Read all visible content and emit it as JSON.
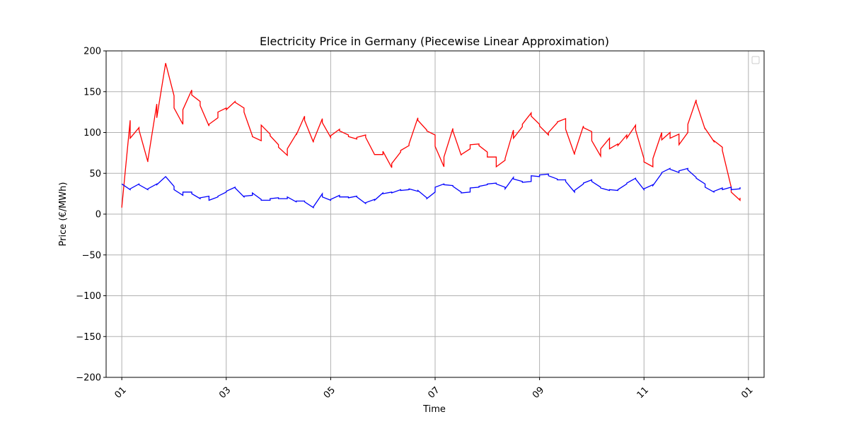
{
  "chart_data": {
    "type": "line",
    "title": "Electricity Price in Germany (Piecewise Linear Approximation)",
    "xlabel": "Time",
    "ylabel": "Price (€/MWh)",
    "xlim": [
      -0.3,
      12.3
    ],
    "ylim": [
      -200,
      200
    ],
    "x_ticks": [
      0,
      2,
      4,
      6,
      8,
      10,
      12
    ],
    "x_tick_labels": [
      "01",
      "03",
      "05",
      "07",
      "09",
      "11",
      "01"
    ],
    "y_ticks": [
      -200,
      -150,
      -100,
      -50,
      0,
      50,
      100,
      150,
      200
    ],
    "y_tick_labels": [
      "−200",
      "−150",
      "−100",
      "−50",
      "0",
      "50",
      "100",
      "150",
      "200"
    ],
    "grid": true,
    "legend": {
      "placement": "top-right",
      "entries": []
    },
    "series": [
      {
        "color": "#ff0000",
        "points": [
          [
            0.0,
            8
          ],
          [
            0.16,
            115
          ],
          [
            0.16,
            93
          ],
          [
            0.33,
            106
          ],
          [
            0.33,
            103
          ],
          [
            0.5,
            64
          ],
          [
            0.5,
            66
          ],
          [
            0.67,
            135
          ],
          [
            0.67,
            118
          ],
          [
            0.84,
            185
          ],
          [
            1.0,
            145
          ],
          [
            1.0,
            130
          ],
          [
            1.17,
            110
          ],
          [
            1.17,
            128
          ],
          [
            1.34,
            152
          ],
          [
            1.34,
            146
          ],
          [
            1.5,
            138
          ],
          [
            1.5,
            133
          ],
          [
            1.67,
            108
          ],
          [
            1.67,
            110
          ],
          [
            1.84,
            118
          ],
          [
            1.84,
            125
          ],
          [
            2.0,
            130
          ],
          [
            2.0,
            128
          ],
          [
            2.17,
            138
          ],
          [
            2.17,
            137
          ],
          [
            2.34,
            130
          ],
          [
            2.34,
            125
          ],
          [
            2.5,
            96
          ],
          [
            2.5,
            95
          ],
          [
            2.67,
            90
          ],
          [
            2.67,
            109
          ],
          [
            2.84,
            98
          ],
          [
            2.84,
            96
          ],
          [
            3.0,
            85
          ],
          [
            3.0,
            82
          ],
          [
            3.17,
            72
          ],
          [
            3.17,
            80
          ],
          [
            3.34,
            98
          ],
          [
            3.34,
            97
          ],
          [
            3.5,
            120
          ],
          [
            3.5,
            115
          ],
          [
            3.67,
            88
          ],
          [
            3.67,
            90
          ],
          [
            3.84,
            117
          ],
          [
            3.84,
            112
          ],
          [
            4.0,
            94
          ],
          [
            4.0,
            96
          ],
          [
            4.17,
            104
          ],
          [
            4.17,
            102
          ],
          [
            4.34,
            97
          ],
          [
            4.34,
            95
          ],
          [
            4.5,
            92
          ],
          [
            4.5,
            94
          ],
          [
            4.67,
            97
          ],
          [
            4.67,
            94
          ],
          [
            4.84,
            73
          ],
          [
            5.0,
            73
          ],
          [
            5.0,
            77
          ],
          [
            5.17,
            57
          ],
          [
            5.17,
            62
          ],
          [
            5.34,
            76
          ],
          [
            5.34,
            78
          ],
          [
            5.5,
            84
          ],
          [
            5.5,
            86
          ],
          [
            5.67,
            118
          ],
          [
            5.67,
            115
          ],
          [
            5.84,
            103
          ],
          [
            5.84,
            102
          ],
          [
            6.0,
            97
          ],
          [
            6.0,
            83
          ],
          [
            6.17,
            58
          ],
          [
            6.17,
            70
          ],
          [
            6.34,
            105
          ],
          [
            6.34,
            102
          ],
          [
            6.5,
            72
          ],
          [
            6.5,
            73
          ],
          [
            6.67,
            80
          ],
          [
            6.67,
            85
          ],
          [
            6.84,
            86
          ],
          [
            6.84,
            84
          ],
          [
            7.0,
            76
          ],
          [
            7.0,
            70
          ],
          [
            7.17,
            70
          ],
          [
            7.17,
            58
          ],
          [
            7.34,
            66
          ],
          [
            7.34,
            68
          ],
          [
            7.5,
            103
          ],
          [
            7.5,
            93
          ],
          [
            7.67,
            107
          ],
          [
            7.67,
            110
          ],
          [
            7.84,
            124
          ],
          [
            7.84,
            120
          ],
          [
            8.0,
            110
          ],
          [
            8.0,
            108
          ],
          [
            8.17,
            97
          ],
          [
            8.17,
            100
          ],
          [
            8.34,
            112
          ],
          [
            8.34,
            113
          ],
          [
            8.5,
            117
          ],
          [
            8.5,
            104
          ],
          [
            8.67,
            73
          ],
          [
            8.67,
            75
          ],
          [
            8.84,
            108
          ],
          [
            8.84,
            106
          ],
          [
            9.0,
            101
          ],
          [
            9.0,
            90
          ],
          [
            9.17,
            71
          ],
          [
            9.17,
            80
          ],
          [
            9.34,
            93
          ],
          [
            9.34,
            80
          ],
          [
            9.5,
            86
          ],
          [
            9.5,
            84
          ],
          [
            9.67,
            97
          ],
          [
            9.67,
            93
          ],
          [
            9.84,
            109
          ],
          [
            9.84,
            103
          ],
          [
            10.0,
            68
          ],
          [
            10.0,
            64
          ],
          [
            10.17,
            58
          ],
          [
            10.17,
            68
          ],
          [
            10.34,
            100
          ],
          [
            10.34,
            91
          ],
          [
            10.5,
            100
          ],
          [
            10.5,
            93
          ],
          [
            10.67,
            98
          ],
          [
            10.67,
            85
          ],
          [
            10.84,
            100
          ],
          [
            10.84,
            110
          ],
          [
            11.0,
            140
          ],
          [
            11.0,
            137
          ],
          [
            11.17,
            104
          ],
          [
            11.17,
            105
          ],
          [
            11.34,
            89
          ],
          [
            11.34,
            90
          ],
          [
            11.5,
            82
          ],
          [
            11.5,
            78
          ],
          [
            11.67,
            33
          ],
          [
            11.67,
            27
          ],
          [
            11.84,
            17
          ],
          [
            11.84,
            20
          ]
        ]
      },
      {
        "color": "#0000ff",
        "points": [
          [
            0.0,
            37
          ],
          [
            0.16,
            30
          ],
          [
            0.16,
            31
          ],
          [
            0.33,
            37
          ],
          [
            0.33,
            36
          ],
          [
            0.5,
            30
          ],
          [
            0.5,
            31
          ],
          [
            0.67,
            37
          ],
          [
            0.67,
            36
          ],
          [
            0.84,
            46
          ],
          [
            1.0,
            34
          ],
          [
            1.0,
            30
          ],
          [
            1.17,
            23
          ],
          [
            1.17,
            27
          ],
          [
            1.34,
            27
          ],
          [
            1.34,
            25
          ],
          [
            1.5,
            19
          ],
          [
            1.5,
            20
          ],
          [
            1.67,
            22
          ],
          [
            1.67,
            17
          ],
          [
            1.84,
            21
          ],
          [
            1.84,
            22
          ],
          [
            2.0,
            27
          ],
          [
            2.0,
            28
          ],
          [
            2.17,
            33
          ],
          [
            2.17,
            32
          ],
          [
            2.34,
            21
          ],
          [
            2.34,
            22
          ],
          [
            2.5,
            23
          ],
          [
            2.5,
            26
          ],
          [
            2.67,
            18
          ],
          [
            2.67,
            17
          ],
          [
            2.84,
            17
          ],
          [
            2.84,
            19
          ],
          [
            3.0,
            20
          ],
          [
            3.0,
            19
          ],
          [
            3.17,
            19
          ],
          [
            3.17,
            21
          ],
          [
            3.34,
            15
          ],
          [
            3.34,
            16
          ],
          [
            3.5,
            16
          ],
          [
            3.5,
            15
          ],
          [
            3.67,
            8
          ],
          [
            3.67,
            9
          ],
          [
            3.84,
            25
          ],
          [
            3.84,
            21
          ],
          [
            4.0,
            17
          ],
          [
            4.0,
            18
          ],
          [
            4.17,
            23
          ],
          [
            4.17,
            21
          ],
          [
            4.34,
            21
          ],
          [
            4.34,
            20
          ],
          [
            4.5,
            22
          ],
          [
            4.5,
            21
          ],
          [
            4.67,
            13
          ],
          [
            4.67,
            14
          ],
          [
            4.84,
            18
          ],
          [
            4.84,
            17
          ],
          [
            5.0,
            26
          ],
          [
            5.0,
            25
          ],
          [
            5.17,
            27
          ],
          [
            5.17,
            26
          ],
          [
            5.34,
            30
          ],
          [
            5.34,
            29
          ],
          [
            5.5,
            30
          ],
          [
            5.5,
            31
          ],
          [
            5.67,
            28
          ],
          [
            5.67,
            29
          ],
          [
            5.84,
            20
          ],
          [
            5.84,
            19
          ],
          [
            6.0,
            27
          ],
          [
            6.0,
            33
          ],
          [
            6.17,
            37
          ],
          [
            6.17,
            36
          ],
          [
            6.34,
            35
          ],
          [
            6.34,
            34
          ],
          [
            6.5,
            27
          ],
          [
            6.5,
            26
          ],
          [
            6.67,
            27
          ],
          [
            6.67,
            32
          ],
          [
            6.84,
            33
          ],
          [
            6.84,
            34
          ],
          [
            7.0,
            36
          ],
          [
            7.0,
            37
          ],
          [
            7.17,
            38
          ],
          [
            7.17,
            37
          ],
          [
            7.34,
            33
          ],
          [
            7.34,
            31
          ],
          [
            7.5,
            45
          ],
          [
            7.5,
            43
          ],
          [
            7.67,
            40
          ],
          [
            7.67,
            39
          ],
          [
            7.84,
            40
          ],
          [
            7.84,
            47
          ],
          [
            8.0,
            46
          ],
          [
            8.0,
            48
          ],
          [
            8.17,
            49
          ],
          [
            8.17,
            47
          ],
          [
            8.34,
            43
          ],
          [
            8.34,
            42
          ],
          [
            8.5,
            42
          ],
          [
            8.5,
            40
          ],
          [
            8.67,
            27
          ],
          [
            8.67,
            29
          ],
          [
            8.84,
            37
          ],
          [
            8.84,
            38
          ],
          [
            9.0,
            42
          ],
          [
            9.0,
            40
          ],
          [
            9.17,
            33
          ],
          [
            9.17,
            32
          ],
          [
            9.34,
            29
          ],
          [
            9.34,
            30
          ],
          [
            9.5,
            29
          ],
          [
            9.5,
            30
          ],
          [
            9.67,
            37
          ],
          [
            9.67,
            38
          ],
          [
            9.84,
            44
          ],
          [
            9.84,
            43
          ],
          [
            10.0,
            30
          ],
          [
            10.0,
            31
          ],
          [
            10.17,
            36
          ],
          [
            10.17,
            35
          ],
          [
            10.34,
            50
          ],
          [
            10.34,
            51
          ],
          [
            10.5,
            56
          ],
          [
            10.5,
            55
          ],
          [
            10.67,
            51
          ],
          [
            10.67,
            53
          ],
          [
            10.84,
            56
          ],
          [
            10.84,
            54
          ],
          [
            11.0,
            45
          ],
          [
            11.0,
            44
          ],
          [
            11.17,
            37
          ],
          [
            11.17,
            33
          ],
          [
            11.34,
            27
          ],
          [
            11.34,
            28
          ],
          [
            11.5,
            32
          ],
          [
            11.5,
            30
          ],
          [
            11.67,
            33
          ],
          [
            11.67,
            30
          ],
          [
            11.84,
            31
          ],
          [
            11.84,
            33
          ]
        ]
      }
    ]
  }
}
